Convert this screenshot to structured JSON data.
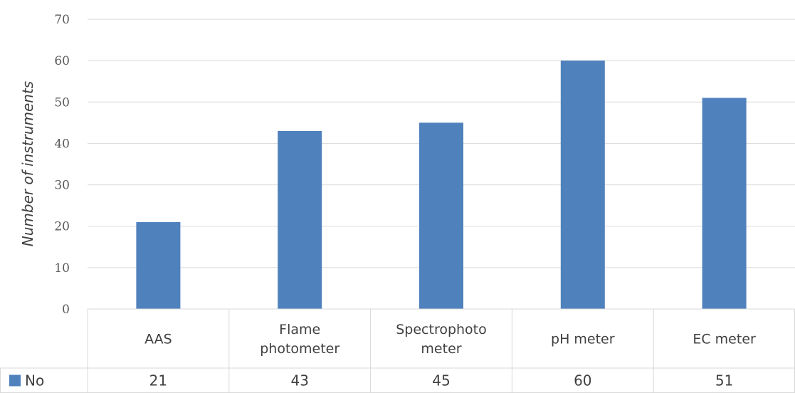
{
  "chart_data": {
    "type": "bar",
    "categories": [
      [
        "AAS"
      ],
      [
        "Flame",
        "photometer"
      ],
      [
        "Spectrophoto",
        "meter"
      ],
      [
        "pH meter"
      ],
      [
        "EC meter"
      ]
    ],
    "series": [
      {
        "name": "No",
        "values": [
          21,
          43,
          45,
          60,
          51
        ],
        "color": "#4f81bd"
      }
    ],
    "ylabel": "Number of instruments",
    "ylim": [
      0,
      70
    ],
    "yticks": [
      0,
      10,
      20,
      30,
      40,
      50,
      60,
      70
    ],
    "grid": true,
    "legend": "data-table-row"
  }
}
